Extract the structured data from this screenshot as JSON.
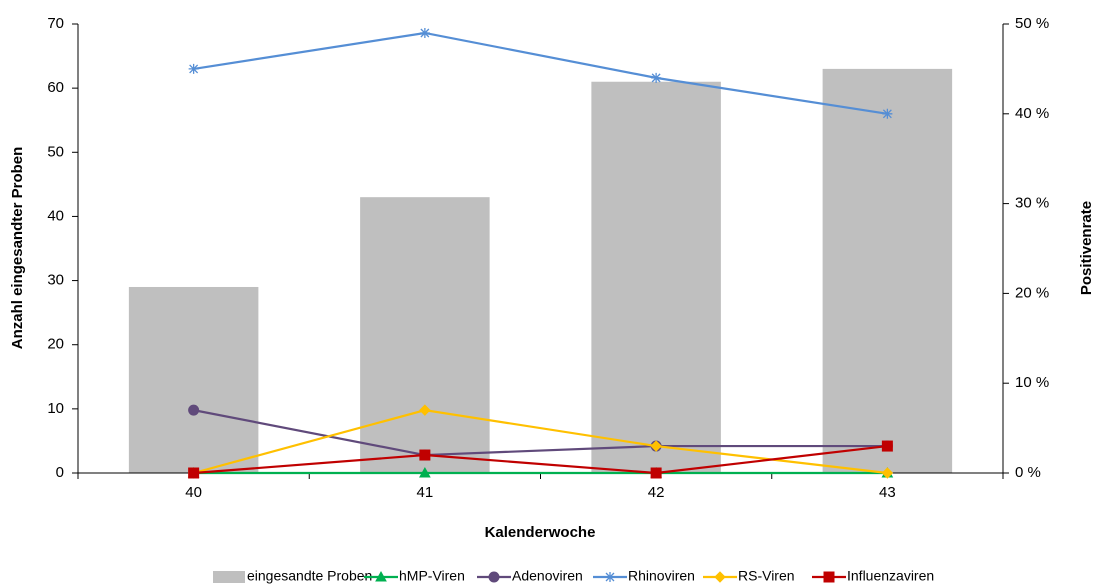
{
  "chart_data": {
    "type": "bar",
    "categories": [
      "40",
      "41",
      "42",
      "43"
    ],
    "x_label": "Kalenderwoche",
    "y_label": "Anzahl eingesandter Proben",
    "y2_label": "Positivenrate",
    "ylim": [
      0,
      70
    ],
    "yticks": [
      0,
      10,
      20,
      30,
      40,
      50,
      60,
      70
    ],
    "y2lim": [
      0,
      50
    ],
    "y2ticks": [
      {
        "value": 0,
        "label": "0 %"
      },
      {
        "value": 10,
        "label": "10 %"
      },
      {
        "value": 20,
        "label": "20 %"
      },
      {
        "value": 30,
        "label": "30 %"
      },
      {
        "value": 40,
        "label": "40 %"
      },
      {
        "value": 50,
        "label": "50 %"
      }
    ],
    "legend": "bottom",
    "series": [
      {
        "name": "eingesandte Proben",
        "type": "bar",
        "color": "#bfbfbf",
        "values": [
          29,
          43,
          61,
          63
        ]
      },
      {
        "name": "hMP-Viren",
        "type": "line",
        "axis": "y2",
        "marker": "triangle",
        "color": "#00b050",
        "values": [
          0,
          0,
          0,
          0
        ]
      },
      {
        "name": "Adenoviren",
        "type": "line",
        "axis": "y2",
        "marker": "circle",
        "color": "#604a7b",
        "values": [
          7,
          2,
          3,
          3
        ]
      },
      {
        "name": "Rhinoviren",
        "type": "line",
        "axis": "y2",
        "marker": "asterisk",
        "color": "#558ed5",
        "values": [
          45,
          49,
          44,
          40
        ]
      },
      {
        "name": "RS-Viren",
        "type": "line",
        "axis": "y2",
        "marker": "diamond",
        "color": "#ffc000",
        "values": [
          0,
          7,
          3,
          0
        ]
      },
      {
        "name": "Influenzaviren",
        "type": "line",
        "axis": "y2",
        "marker": "square",
        "color": "#c00000",
        "values": [
          0,
          2,
          0,
          3
        ]
      }
    ]
  }
}
